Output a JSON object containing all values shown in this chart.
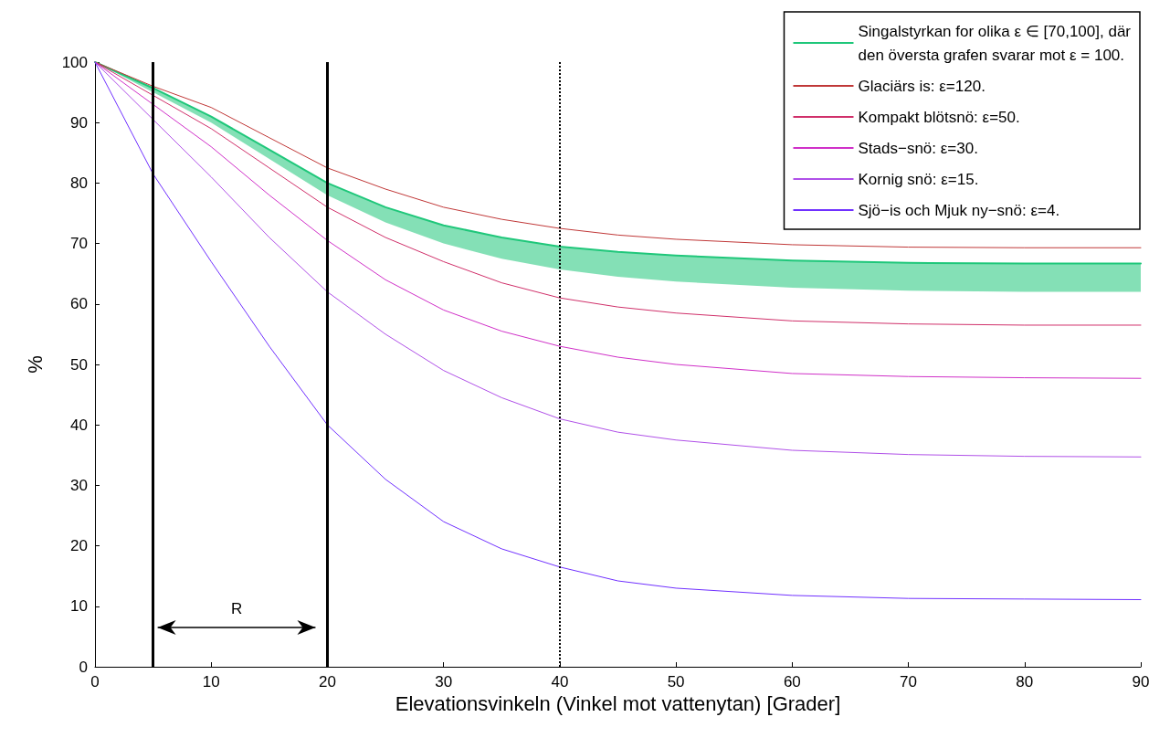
{
  "chart_data": {
    "type": "line",
    "xlabel": "Elevationsvinkeln (Vinkel mot vattenytan) [Grader]",
    "ylabel": "%",
    "x": [
      0,
      5,
      10,
      15,
      20,
      25,
      30,
      35,
      40,
      45,
      50,
      60,
      70,
      80,
      90
    ],
    "xlim": [
      0,
      90
    ],
    "xticks": [
      0,
      10,
      20,
      30,
      40,
      50,
      60,
      70,
      80,
      90
    ],
    "ylim": [
      0,
      100
    ],
    "yticks": [
      0,
      10,
      20,
      30,
      40,
      50,
      60,
      70,
      80,
      90,
      100
    ],
    "grid": false,
    "legend": "top right",
    "marker": "none",
    "line_style": "solid",
    "series": [
      {
        "name": "Singalstyrkan for olika ε ∈ [70,100], där\nden översta grafen svarar mot ε = 100.",
        "color": "#1fc77a",
        "values": [
          100,
          95.7,
          91,
          85.5,
          80,
          76,
          73,
          71,
          69.5,
          68.6,
          68,
          67.2,
          66.8,
          66.7,
          66.7
        ],
        "lower": [
          100,
          95,
          90,
          84,
          78,
          73.5,
          70,
          67.5,
          65.7,
          64.5,
          63.7,
          62.7,
          62.2,
          62,
          62
        ],
        "upper": [
          100,
          95.7,
          91,
          85.5,
          80,
          76,
          73,
          71,
          69.5,
          68.6,
          68,
          67.2,
          66.8,
          66.7,
          66.7
        ]
      },
      {
        "name": "Glaciärs is: ε=120.",
        "color": "#c03838",
        "values": [
          100,
          96,
          92.5,
          87.5,
          82.5,
          79,
          76,
          74,
          72.5,
          71.4,
          70.7,
          69.8,
          69.4,
          69.3,
          69.3
        ]
      },
      {
        "name": "Kompakt blötsnö: ε=50.",
        "color": "#d0306a",
        "values": [
          100,
          94.5,
          89,
          82.5,
          76,
          71,
          67,
          63.5,
          61,
          59.5,
          58.5,
          57.2,
          56.7,
          56.5,
          56.5
        ]
      },
      {
        "name": "Stads−snö: ε=30.",
        "color": "#d030c8",
        "values": [
          100,
          93,
          86,
          78,
          70.5,
          64,
          59,
          55.5,
          53,
          51.2,
          50,
          48.5,
          48,
          47.8,
          47.7
        ]
      },
      {
        "name": "Kornig snö: ε=15.",
        "color": "#b050e8",
        "values": [
          100,
          90.5,
          81,
          71,
          62,
          55,
          49,
          44.5,
          41,
          38.8,
          37.5,
          35.8,
          35.1,
          34.8,
          34.7
        ]
      },
      {
        "name": "Sjö−is och Mjuk ny−snö: ε=4.",
        "color": "#7030ff",
        "values": [
          100,
          81.5,
          67,
          53,
          40,
          31,
          24,
          19.5,
          16.5,
          14.2,
          13,
          11.8,
          11.3,
          11.2,
          11.1
        ]
      }
    ],
    "ref_lines": [
      {
        "axis": "x",
        "value": 5,
        "color": "#000000",
        "line_style": "solid"
      },
      {
        "axis": "x",
        "value": 20,
        "color": "#000000",
        "line_style": "solid"
      },
      {
        "axis": "x",
        "value": 40,
        "color": "#000000",
        "line_style": "dotted"
      }
    ],
    "annotations": [
      "R"
    ]
  }
}
